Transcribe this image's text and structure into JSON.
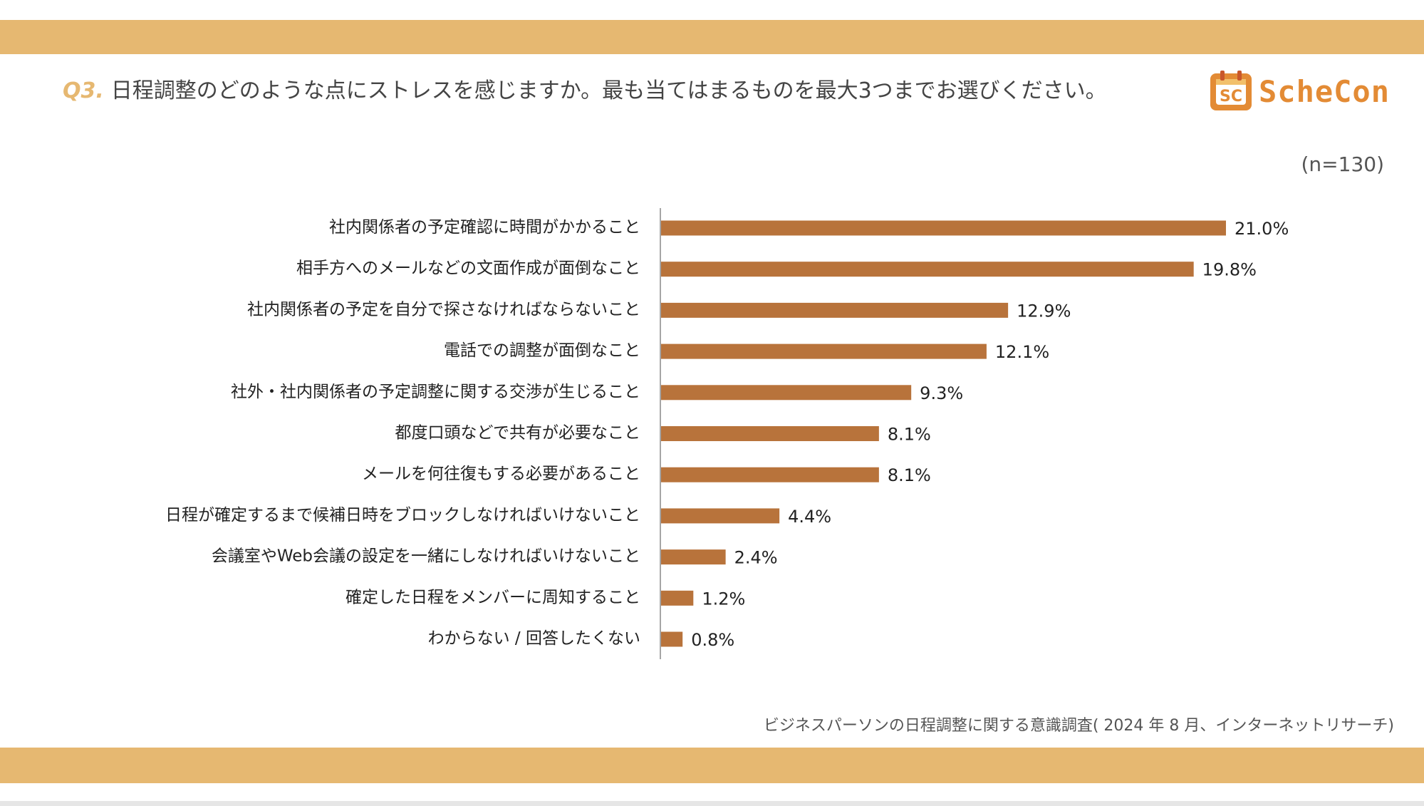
{
  "header": {
    "question_label": "Q3.",
    "question_text": "日程調整のどのような点にストレスを感じますか。最も当てはまるものを最大3つまでお選びください。",
    "sample_size": "(n=130)"
  },
  "logo": {
    "icon": "schecon-logo-icon",
    "icon_letters": "SC",
    "text": "ScheCon"
  },
  "colors": {
    "band": "#E6B871",
    "bar": "#B8733B",
    "question_label": "#E6B871",
    "logo_text": "#E38B35"
  },
  "chart_data": {
    "type": "bar",
    "orientation": "horizontal",
    "title": "Q3. 日程調整のどのような点にストレスを感じますか。最も当てはまるものを最大3つまでお選びください。",
    "xlabel": "",
    "ylabel": "",
    "xlim": [
      0,
      21
    ],
    "grid": false,
    "categories": [
      "社内関係者の予定確認に時間がかかること",
      "相手方へのメールなどの文面作成が面倒なこと",
      "社内関係者の予定を自分で探さなければならないこと",
      "電話での調整が面倒なこと",
      "社外・社内関係者の予定調整に関する交渉が生じること",
      "都度口頭などで共有が必要なこと",
      "メールを何往復もする必要があること",
      "日程が確定するまで候補日時をブロックしなければいけないこと",
      "会議室やWeb会議の設定を一緒にしなければいけないこと",
      "確定した日程をメンバーに周知すること",
      "わからない / 回答したくない"
    ],
    "values": [
      21.0,
      19.8,
      12.9,
      12.1,
      9.3,
      8.1,
      8.1,
      4.4,
      2.4,
      1.2,
      0.8
    ],
    "value_labels": [
      "21.0%",
      "19.8%",
      "12.9%",
      "12.1%",
      "9.3%",
      "8.1%",
      "8.1%",
      "4.4%",
      "2.4%",
      "1.2%",
      "0.8%"
    ]
  },
  "footer": {
    "source": "ビジネスパーソンの日程調整に関する意識調査( 2024 年 8 月、インターネットリサーチ)"
  }
}
